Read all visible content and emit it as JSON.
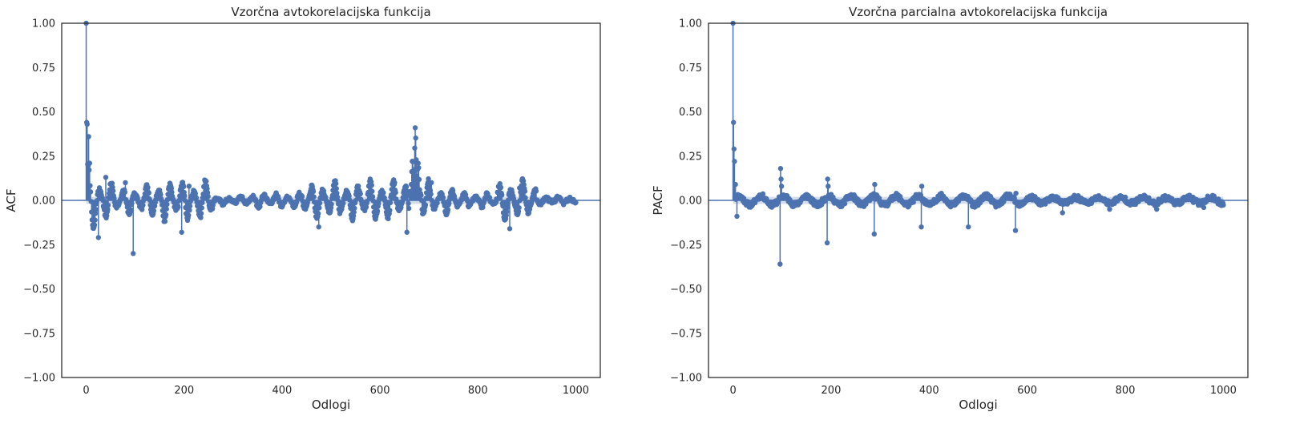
{
  "chart_data": [
    {
      "type": "stem",
      "title": "Vzorčna avtokorelacijska funkcija",
      "xlabel": "Odlogi",
      "ylabel": "ACF",
      "xlim": [
        -50,
        1050
      ],
      "ylim": [
        -1.0,
        1.0
      ],
      "xticks": [
        "0",
        "200",
        "400",
        "600",
        "800",
        "1000"
      ],
      "yticks": [
        "−1.00",
        "−0.75",
        "−0.50",
        "−0.25",
        "0.00",
        "0.25",
        "0.50",
        "0.75",
        "1.00"
      ],
      "grid": false,
      "color": "#4c72b0",
      "lags_range": [
        0,
        1000
      ],
      "highlighted_points": [
        {
          "lag": 0,
          "value": 1.0
        },
        {
          "lag": 1,
          "value": 0.44
        },
        {
          "lag": 2,
          "value": 0.43
        },
        {
          "lag": 5,
          "value": 0.36
        },
        {
          "lag": 7,
          "value": 0.21
        },
        {
          "lag": 25,
          "value": -0.21
        },
        {
          "lag": 40,
          "value": 0.13
        },
        {
          "lag": 80,
          "value": 0.1
        },
        {
          "lag": 96,
          "value": -0.3
        },
        {
          "lag": 195,
          "value": -0.18
        },
        {
          "lag": 210,
          "value": 0.08
        },
        {
          "lag": 475,
          "value": -0.15
        },
        {
          "lag": 630,
          "value": 0.1
        },
        {
          "lag": 655,
          "value": -0.18
        },
        {
          "lag": 672,
          "value": 0.41
        },
        {
          "lag": 705,
          "value": 0.1
        },
        {
          "lag": 865,
          "value": -0.16
        },
        {
          "lag": 885,
          "value": 0.07
        }
      ],
      "confidence_band": 0.02
    },
    {
      "type": "stem",
      "title": "Vzorčna parcialna avtokorelacijska funkcija",
      "xlabel": "Odlogi",
      "ylabel": "PACF",
      "xlim": [
        -50,
        1050
      ],
      "ylim": [
        -1.0,
        1.0
      ],
      "xticks": [
        "0",
        "200",
        "400",
        "600",
        "800",
        "1000"
      ],
      "yticks": [
        "−1.00",
        "−0.75",
        "−0.50",
        "−0.25",
        "0.00",
        "0.25",
        "0.50",
        "0.75",
        "1.00"
      ],
      "grid": false,
      "color": "#4c72b0",
      "lags_range": [
        0,
        1000
      ],
      "highlighted_points": [
        {
          "lag": 0,
          "value": 1.0
        },
        {
          "lag": 1,
          "value": 0.44
        },
        {
          "lag": 2,
          "value": 0.29
        },
        {
          "lag": 3,
          "value": 0.22
        },
        {
          "lag": 5,
          "value": 0.09
        },
        {
          "lag": 8,
          "value": -0.09
        },
        {
          "lag": 96,
          "value": -0.36
        },
        {
          "lag": 97,
          "value": 0.18
        },
        {
          "lag": 98,
          "value": 0.12
        },
        {
          "lag": 99,
          "value": 0.08
        },
        {
          "lag": 192,
          "value": -0.24
        },
        {
          "lag": 193,
          "value": 0.12
        },
        {
          "lag": 194,
          "value": 0.08
        },
        {
          "lag": 288,
          "value": -0.19
        },
        {
          "lag": 289,
          "value": 0.09
        },
        {
          "lag": 384,
          "value": -0.15
        },
        {
          "lag": 385,
          "value": 0.08
        },
        {
          "lag": 480,
          "value": -0.15
        },
        {
          "lag": 576,
          "value": -0.17
        },
        {
          "lag": 577,
          "value": 0.04
        },
        {
          "lag": 672,
          "value": -0.07
        },
        {
          "lag": 768,
          "value": -0.05
        },
        {
          "lag": 864,
          "value": -0.05
        },
        {
          "lag": 960,
          "value": -0.04
        }
      ],
      "confidence_band": 0.02
    }
  ]
}
